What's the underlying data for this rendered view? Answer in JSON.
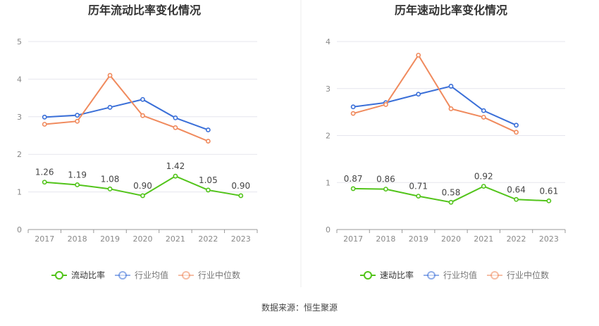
{
  "source_text": "数据来源：恒生聚源",
  "colors": {
    "main": "#52c41a",
    "avg": "#3a6fd8",
    "median": "#f08a5d",
    "axis": "#888888",
    "grid": "#e6e6ee"
  },
  "chart_data": [
    {
      "type": "line",
      "title": "历年流动比率变化情况",
      "categories": [
        "2017",
        "2018",
        "2019",
        "2020",
        "2021",
        "2022",
        "2023"
      ],
      "ylim": [
        0,
        5
      ],
      "yticks": [
        0,
        1,
        2,
        3,
        4,
        5
      ],
      "grid": true,
      "legend_placement": "bottom",
      "series": [
        {
          "name": "流动比率",
          "color": "#52c41a",
          "labels": true,
          "values": [
            1.26,
            1.19,
            1.08,
            0.9,
            1.42,
            1.05,
            0.9
          ],
          "value_labels": [
            "1.26",
            "1.19",
            "1.08",
            "0.90",
            "1.42",
            "1.05",
            "0.90"
          ]
        },
        {
          "name": "行业均值",
          "color": "#3a6fd8",
          "labels": false,
          "values": [
            2.99,
            3.04,
            3.25,
            3.46,
            2.97,
            2.65,
            null
          ]
        },
        {
          "name": "行业中位数",
          "color": "#f08a5d",
          "labels": false,
          "values": [
            2.8,
            2.88,
            4.1,
            3.03,
            2.71,
            2.35,
            null
          ]
        }
      ]
    },
    {
      "type": "line",
      "title": "历年速动比率变化情况",
      "categories": [
        "2017",
        "2018",
        "2019",
        "2020",
        "2021",
        "2022",
        "2023"
      ],
      "ylim": [
        0,
        4
      ],
      "yticks": [
        0,
        1,
        2,
        3,
        4
      ],
      "grid": true,
      "legend_placement": "bottom",
      "series": [
        {
          "name": "速动比率",
          "color": "#52c41a",
          "labels": true,
          "values": [
            0.87,
            0.86,
            0.71,
            0.58,
            0.92,
            0.64,
            0.61
          ],
          "value_labels": [
            "0.87",
            "0.86",
            "0.71",
            "0.58",
            "0.92",
            "0.64",
            "0.61"
          ]
        },
        {
          "name": "行业均值",
          "color": "#3a6fd8",
          "labels": false,
          "values": [
            2.61,
            2.7,
            2.88,
            3.05,
            2.53,
            2.22,
            null
          ]
        },
        {
          "name": "行业中位数",
          "color": "#f08a5d",
          "labels": false,
          "values": [
            2.47,
            2.66,
            3.71,
            2.57,
            2.39,
            2.07,
            null
          ]
        }
      ]
    }
  ]
}
